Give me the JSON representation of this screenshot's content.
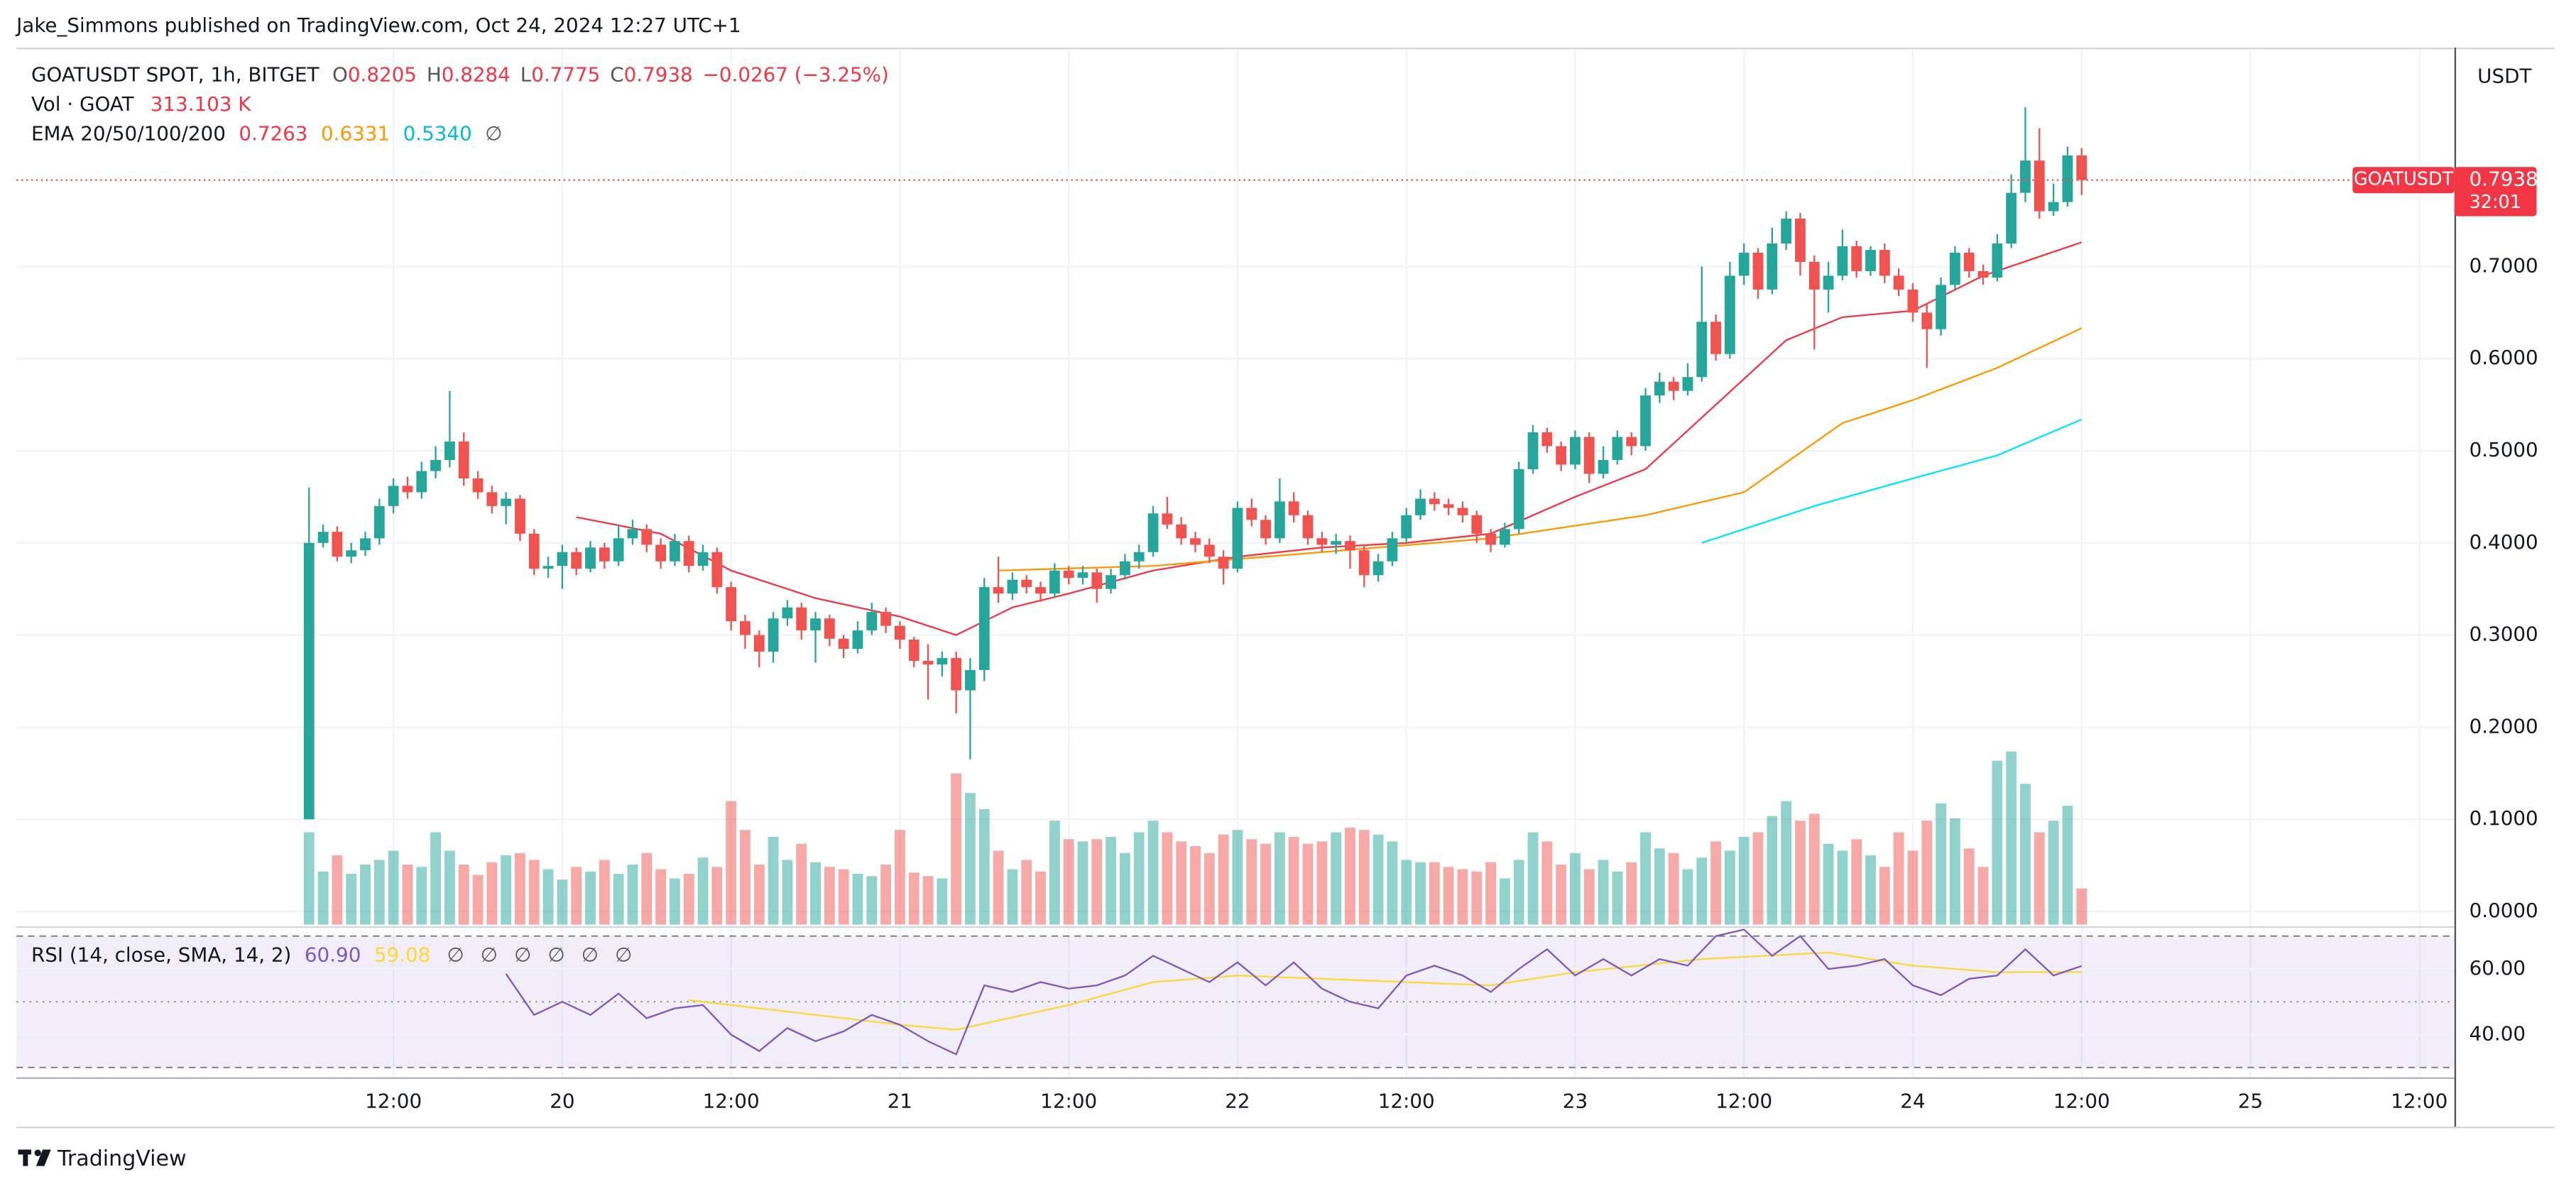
{
  "chart_data": {
    "type": "candlestick",
    "attribution": "Jake_Simmons published on TradingView.com, Oct 24, 2024 12:27 UTC+1",
    "brand": "TradingView",
    "title": "GOATUSDT SPOT, 1h, BITGET",
    "ohlc_labels": [
      "O",
      "H",
      "L",
      "C"
    ],
    "change": "−0.0267 (−3.25%)",
    "currency": "USDT",
    "price_tag": "GOATUSDT",
    "countdown": "32:01",
    "up_color": "#26a69a",
    "down_color": "#ef5350",
    "grid": true,
    "xlim": [
      "18 09:12",
      "25 14:30"
    ],
    "xticks": [
      {
        "value": "19 12:00",
        "label": "12:00"
      },
      {
        "value": "20 00:00",
        "label": "20"
      },
      {
        "value": "20 12:00",
        "label": "12:00"
      },
      {
        "value": "21 00:00",
        "label": "21"
      },
      {
        "value": "21 12:00",
        "label": "12:00"
      },
      {
        "value": "22 00:00",
        "label": "22"
      },
      {
        "value": "22 12:00",
        "label": "12:00"
      },
      {
        "value": "23 00:00",
        "label": "23"
      },
      {
        "value": "23 12:00",
        "label": "12:00"
      },
      {
        "value": "24 00:00",
        "label": "24"
      },
      {
        "value": "24 12:00",
        "label": "12:00"
      },
      {
        "value": "25 00:00",
        "label": "25"
      },
      {
        "value": "25 12:00",
        "label": "12:00"
      }
    ],
    "ylim": [
      -0.0143,
      0.9358
    ],
    "yticks": [
      {
        "value": 0,
        "label": "0.0000"
      },
      {
        "value": 0.1,
        "label": "0.1000"
      },
      {
        "value": 0.2,
        "label": "0.2000"
      },
      {
        "value": 0.3,
        "label": "0.3000"
      },
      {
        "value": 0.4,
        "label": "0.4000"
      },
      {
        "value": 0.5,
        "label": "0.5000"
      },
      {
        "value": 0.6,
        "label": "0.6000"
      },
      {
        "value": 0.7,
        "label": "0.7000"
      }
    ],
    "x": [
      "19 06:00",
      "19 07:00",
      "19 08:00",
      "19 09:00",
      "19 10:00",
      "19 11:00",
      "19 12:00",
      "19 13:00",
      "19 14:00",
      "19 15:00",
      "19 16:00",
      "19 17:00",
      "19 18:00",
      "19 19:00",
      "19 20:00",
      "19 21:00",
      "19 22:00",
      "19 23:00",
      "20 00:00",
      "20 01:00",
      "20 02:00",
      "20 03:00",
      "20 04:00",
      "20 05:00",
      "20 06:00",
      "20 07:00",
      "20 08:00",
      "20 09:00",
      "20 10:00",
      "20 11:00",
      "20 12:00",
      "20 13:00",
      "20 14:00",
      "20 15:00",
      "20 16:00",
      "20 17:00",
      "20 18:00",
      "20 19:00",
      "20 20:00",
      "20 21:00",
      "20 22:00",
      "20 23:00",
      "21 00:00",
      "21 01:00",
      "21 02:00",
      "21 03:00",
      "21 04:00",
      "21 05:00",
      "21 06:00",
      "21 07:00",
      "21 08:00",
      "21 09:00",
      "21 10:00",
      "21 11:00",
      "21 12:00",
      "21 13:00",
      "21 14:00",
      "21 15:00",
      "21 16:00",
      "21 17:00",
      "21 18:00",
      "21 19:00",
      "21 20:00",
      "21 21:00",
      "21 22:00",
      "21 23:00",
      "22 00:00",
      "22 01:00",
      "22 02:00",
      "22 03:00",
      "22 04:00",
      "22 05:00",
      "22 06:00",
      "22 07:00",
      "22 08:00",
      "22 09:00",
      "22 10:00",
      "22 11:00",
      "22 12:00",
      "22 13:00",
      "22 14:00",
      "22 15:00",
      "22 16:00",
      "22 17:00",
      "22 18:00",
      "22 19:00",
      "22 20:00",
      "22 21:00",
      "22 22:00",
      "22 23:00",
      "23 00:00",
      "23 01:00",
      "23 02:00",
      "23 03:00",
      "23 04:00",
      "23 05:00",
      "23 06:00",
      "23 07:00",
      "23 08:00",
      "23 09:00",
      "23 10:00",
      "23 11:00",
      "23 12:00",
      "23 13:00",
      "23 14:00",
      "23 15:00",
      "23 16:00",
      "23 17:00",
      "23 18:00",
      "23 19:00",
      "23 20:00",
      "23 21:00",
      "23 22:00",
      "23 23:00",
      "24 00:00",
      "24 01:00",
      "24 02:00",
      "24 03:00",
      "24 04:00",
      "24 05:00",
      "24 06:00",
      "24 07:00",
      "24 08:00",
      "24 09:00",
      "24 10:00",
      "24 11:00",
      "24 12:00"
    ],
    "open": [
      0.1,
      0.4,
      0.412,
      0.385,
      0.392,
      0.405,
      0.44,
      0.462,
      0.455,
      0.478,
      0.49,
      0.51,
      0.47,
      0.455,
      0.44,
      0.448,
      0.41,
      0.372,
      0.375,
      0.39,
      0.372,
      0.395,
      0.38,
      0.405,
      0.415,
      0.398,
      0.38,
      0.402,
      0.375,
      0.39,
      0.352,
      0.315,
      0.3,
      0.282,
      0.318,
      0.33,
      0.305,
      0.318,
      0.296,
      0.285,
      0.305,
      0.325,
      0.31,
      0.295,
      0.272,
      0.268,
      0.275,
      0.24,
      0.262,
      0.352,
      0.345,
      0.36,
      0.352,
      0.345,
      0.37,
      0.362,
      0.368,
      0.35,
      0.365,
      0.38,
      0.39,
      0.432,
      0.42,
      0.405,
      0.398,
      0.385,
      0.372,
      0.438,
      0.425,
      0.405,
      0.445,
      0.43,
      0.405,
      0.398,
      0.402,
      0.392,
      0.365,
      0.38,
      0.405,
      0.43,
      0.448,
      0.442,
      0.438,
      0.43,
      0.41,
      0.398,
      0.415,
      0.48,
      0.52,
      0.505,
      0.485,
      0.515,
      0.475,
      0.49,
      0.515,
      0.505,
      0.56,
      0.575,
      0.565,
      0.58,
      0.64,
      0.605,
      0.69,
      0.715,
      0.675,
      0.725,
      0.752,
      0.705,
      0.675,
      0.69,
      0.722,
      0.695,
      0.718,
      0.69,
      0.675,
      0.65,
      0.632,
      0.68,
      0.715,
      0.695,
      0.688,
      0.725,
      0.78,
      0.815,
      0.76,
      0.77,
      0.8205
    ],
    "high": [
      0.46,
      0.42,
      0.418,
      0.4,
      0.412,
      0.448,
      0.47,
      0.472,
      0.488,
      0.505,
      0.565,
      0.52,
      0.478,
      0.462,
      0.455,
      0.452,
      0.415,
      0.385,
      0.398,
      0.395,
      0.402,
      0.4,
      0.42,
      0.425,
      0.42,
      0.405,
      0.41,
      0.408,
      0.398,
      0.395,
      0.358,
      0.322,
      0.305,
      0.325,
      0.338,
      0.335,
      0.325,
      0.322,
      0.3,
      0.315,
      0.335,
      0.33,
      0.315,
      0.298,
      0.29,
      0.282,
      0.282,
      0.275,
      0.362,
      0.385,
      0.368,
      0.365,
      0.358,
      0.378,
      0.375,
      0.375,
      0.372,
      0.372,
      0.388,
      0.398,
      0.44,
      0.45,
      0.428,
      0.412,
      0.405,
      0.392,
      0.445,
      0.448,
      0.43,
      0.47,
      0.455,
      0.435,
      0.412,
      0.41,
      0.408,
      0.398,
      0.388,
      0.412,
      0.438,
      0.458,
      0.455,
      0.448,
      0.445,
      0.435,
      0.415,
      0.422,
      0.488,
      0.528,
      0.525,
      0.51,
      0.522,
      0.52,
      0.505,
      0.522,
      0.52,
      0.568,
      0.585,
      0.58,
      0.595,
      0.7,
      0.648,
      0.705,
      0.725,
      0.72,
      0.742,
      0.76,
      0.758,
      0.712,
      0.705,
      0.74,
      0.728,
      0.722,
      0.725,
      0.698,
      0.682,
      0.66,
      0.688,
      0.722,
      0.72,
      0.702,
      0.735,
      0.8,
      0.873,
      0.85,
      0.79,
      0.83,
      0.8284
    ],
    "low": [
      0.1,
      0.395,
      0.38,
      0.378,
      0.386,
      0.398,
      0.432,
      0.448,
      0.448,
      0.47,
      0.482,
      0.462,
      0.448,
      0.432,
      0.42,
      0.402,
      0.365,
      0.362,
      0.35,
      0.365,
      0.368,
      0.372,
      0.375,
      0.398,
      0.39,
      0.372,
      0.375,
      0.368,
      0.37,
      0.345,
      0.305,
      0.285,
      0.265,
      0.27,
      0.31,
      0.295,
      0.27,
      0.288,
      0.275,
      0.28,
      0.3,
      0.302,
      0.285,
      0.265,
      0.23,
      0.255,
      0.215,
      0.165,
      0.25,
      0.335,
      0.338,
      0.345,
      0.336,
      0.34,
      0.355,
      0.355,
      0.335,
      0.345,
      0.36,
      0.372,
      0.385,
      0.415,
      0.398,
      0.39,
      0.378,
      0.355,
      0.368,
      0.418,
      0.398,
      0.4,
      0.422,
      0.398,
      0.39,
      0.388,
      0.372,
      0.352,
      0.358,
      0.375,
      0.4,
      0.425,
      0.435,
      0.43,
      0.422,
      0.4,
      0.39,
      0.395,
      0.41,
      0.475,
      0.498,
      0.478,
      0.48,
      0.465,
      0.47,
      0.485,
      0.495,
      0.5,
      0.552,
      0.555,
      0.56,
      0.575,
      0.598,
      0.6,
      0.68,
      0.665,
      0.67,
      0.718,
      0.69,
      0.61,
      0.65,
      0.685,
      0.688,
      0.69,
      0.682,
      0.668,
      0.64,
      0.59,
      0.625,
      0.675,
      0.688,
      0.68,
      0.684,
      0.72,
      0.77,
      0.752,
      0.755,
      0.765,
      0.7775
    ],
    "close": [
      0.4,
      0.412,
      0.385,
      0.392,
      0.405,
      0.44,
      0.462,
      0.455,
      0.478,
      0.49,
      0.51,
      0.47,
      0.455,
      0.44,
      0.448,
      0.41,
      0.372,
      0.375,
      0.39,
      0.372,
      0.395,
      0.38,
      0.405,
      0.415,
      0.398,
      0.38,
      0.402,
      0.375,
      0.39,
      0.352,
      0.315,
      0.3,
      0.282,
      0.318,
      0.33,
      0.305,
      0.318,
      0.296,
      0.285,
      0.305,
      0.325,
      0.31,
      0.295,
      0.272,
      0.268,
      0.275,
      0.24,
      0.262,
      0.352,
      0.345,
      0.36,
      0.352,
      0.345,
      0.37,
      0.362,
      0.368,
      0.35,
      0.365,
      0.38,
      0.39,
      0.432,
      0.42,
      0.405,
      0.398,
      0.385,
      0.372,
      0.438,
      0.425,
      0.405,
      0.445,
      0.43,
      0.405,
      0.398,
      0.402,
      0.392,
      0.365,
      0.38,
      0.405,
      0.43,
      0.448,
      0.442,
      0.438,
      0.43,
      0.41,
      0.398,
      0.415,
      0.48,
      0.52,
      0.505,
      0.485,
      0.515,
      0.475,
      0.49,
      0.515,
      0.505,
      0.56,
      0.575,
      0.565,
      0.58,
      0.64,
      0.605,
      0.69,
      0.715,
      0.675,
      0.725,
      0.752,
      0.705,
      0.675,
      0.69,
      0.722,
      0.695,
      0.718,
      0.69,
      0.675,
      0.65,
      0.632,
      0.68,
      0.715,
      0.695,
      0.688,
      0.725,
      0.78,
      0.815,
      0.76,
      0.77,
      0.8205,
      0.7938
    ],
    "volume": {
      "name": "Vol · GOAT",
      "value_label": "313.103 K",
      "ylim": [
        0,
        7584
      ],
      "values": [
        800,
        460,
        600,
        440,
        520,
        560,
        640,
        520,
        500,
        800,
        640,
        520,
        430,
        540,
        600,
        620,
        560,
        480,
        390,
        500,
        460,
        560,
        440,
        520,
        620,
        480,
        400,
        440,
        580,
        500,
        1070,
        820,
        520,
        760,
        560,
        700,
        540,
        500,
        480,
        440,
        420,
        520,
        820,
        450,
        420,
        400,
        1310,
        1140,
        1000,
        640,
        480,
        560,
        460,
        900,
        740,
        720,
        740,
        760,
        620,
        800,
        900,
        800,
        720,
        680,
        620,
        780,
        820,
        740,
        700,
        800,
        760,
        700,
        720,
        800,
        840,
        820,
        780,
        720,
        560,
        540,
        540,
        500,
        480,
        460,
        540,
        400,
        560,
        800,
        720,
        520,
        620,
        480,
        560,
        460,
        540,
        800,
        660,
        620,
        480,
        580,
        720,
        640,
        760,
        800,
        940,
        1070,
        900,
        960,
        700,
        640,
        740,
        600,
        500,
        800,
        640,
        900,
        1050,
        920,
        660,
        500,
        1420,
        1500,
        1220,
        800,
        900,
        1030,
        313.103
      ]
    },
    "ema": {
      "name": "EMA 20/50/100/200",
      "empty": "∅",
      "series": [
        {
          "color": "#f23645",
          "legend_value": "0.7263",
          "x": [
            "20 01:00",
            "20 07:00",
            "20 12:00",
            "20 18:00",
            "21 00:00",
            "21 04:00",
            "21 08:00",
            "21 12:00",
            "21 18:00",
            "22 00:00",
            "22 06:00",
            "22 12:00",
            "22 18:00",
            "23 00:00",
            "23 05:00",
            "23 10:00",
            "23 15:00",
            "23 19:00",
            "24 00:00",
            "24 05:00",
            "24 12:00"
          ],
          "values": [
            0.428,
            0.41,
            0.37,
            0.34,
            0.32,
            0.3,
            0.33,
            0.345,
            0.37,
            0.385,
            0.395,
            0.4,
            0.41,
            0.45,
            0.48,
            0.55,
            0.62,
            0.645,
            0.652,
            0.69,
            0.7263
          ]
        },
        {
          "color": "#ff9800",
          "legend_value": "0.6331",
          "x": [
            "21 07:00",
            "21 18:00",
            "22 06:00",
            "22 18:00",
            "23 05:00",
            "23 12:00",
            "23 19:00",
            "24 00:00",
            "24 06:00",
            "24 12:00"
          ],
          "values": [
            0.37,
            0.375,
            0.39,
            0.405,
            0.43,
            0.455,
            0.53,
            0.555,
            0.59,
            0.6331
          ]
        },
        {
          "color": "#00e5ff",
          "legend_value": "0.5340",
          "x": [
            "23 09:00",
            "23 17:00",
            "24 00:00",
            "24 06:00",
            "24 12:00"
          ],
          "values": [
            0.4,
            0.44,
            0.47,
            0.495,
            0.534
          ]
        }
      ]
    },
    "rsi": {
      "name": "RSI (14, close, SMA, 14, 2)",
      "color": "#7e57c2",
      "value_label": "60.90",
      "empty": [
        "∅",
        "∅",
        "∅",
        "∅",
        "∅",
        "∅"
      ],
      "ylim": [
        27.5,
        72.5
      ],
      "yticks": [
        {
          "value": 60,
          "label": "60.00"
        },
        {
          "value": 40,
          "label": "40.00"
        }
      ],
      "levels": [
        70,
        50,
        30
      ],
      "x": [
        "19 20:00",
        "19 22:00",
        "20 00:00",
        "20 02:00",
        "20 04:00",
        "20 06:00",
        "20 08:00",
        "20 10:00",
        "20 12:00",
        "20 14:00",
        "20 16:00",
        "20 18:00",
        "20 20:00",
        "20 22:00",
        "21 00:00",
        "21 02:00",
        "21 04:00",
        "21 06:00",
        "21 08:00",
        "21 10:00",
        "21 12:00",
        "21 14:00",
        "21 16:00",
        "21 18:00",
        "21 20:00",
        "21 22:00",
        "22 00:00",
        "22 02:00",
        "22 04:00",
        "22 06:00",
        "22 08:00",
        "22 10:00",
        "22 12:00",
        "22 14:00",
        "22 16:00",
        "22 18:00",
        "22 20:00",
        "22 22:00",
        "23 00:00",
        "23 02:00",
        "23 04:00",
        "23 06:00",
        "23 08:00",
        "23 10:00",
        "23 12:00",
        "23 14:00",
        "23 16:00",
        "23 18:00",
        "23 20:00",
        "23 22:00",
        "24 00:00",
        "24 02:00",
        "24 04:00",
        "24 06:00",
        "24 08:00",
        "24 10:00",
        "24 12:00"
      ],
      "values": [
        58.5,
        46,
        50,
        46,
        52.5,
        45,
        48,
        49,
        40,
        35,
        42,
        38,
        41,
        46,
        43,
        38,
        34,
        55,
        53,
        56,
        54,
        55,
        58,
        64,
        60,
        56,
        62,
        55,
        62,
        54,
        50,
        48,
        58,
        61,
        58,
        53,
        60,
        66,
        58,
        63,
        58,
        63,
        61,
        70,
        72,
        64,
        70,
        60,
        61,
        63,
        55,
        52,
        57,
        58,
        66,
        58,
        60.9
      ],
      "sma": {
        "color": "#fdd835",
        "x": [
          "20 09:00",
          "20 16:00",
          "21 00:00",
          "21 04:00",
          "21 12:00",
          "21 18:00",
          "22 00:00",
          "22 06:00",
          "22 12:00",
          "22 18:00",
          "23 00:00",
          "23 09:00",
          "23 18:00",
          "24 00:00",
          "24 06:00",
          "24 12:00"
        ],
        "values": [
          50.5,
          47,
          43,
          41.5,
          49,
          56,
          58,
          57,
          56,
          55,
          59,
          63,
          65,
          61,
          59,
          59.08
        ]
      }
    }
  }
}
